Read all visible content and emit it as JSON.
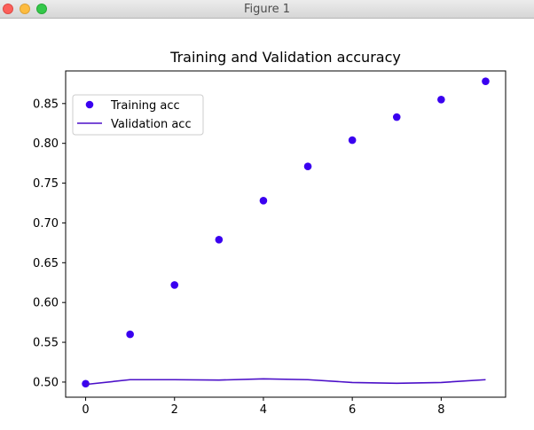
{
  "window": {
    "title": "Figure 1",
    "buttons": [
      "close",
      "minimize",
      "zoom"
    ]
  },
  "chart_data": {
    "type": "scatter",
    "title": "Training and Validation accuracy",
    "xlabel": "",
    "ylabel": "",
    "xlim": [
      -0.45,
      9.45
    ],
    "ylim": [
      0.481,
      0.891
    ],
    "xticks": [
      0,
      2,
      4,
      6,
      8
    ],
    "yticks": [
      0.5,
      0.55,
      0.6,
      0.65,
      0.7,
      0.75,
      0.8,
      0.85
    ],
    "grid": false,
    "legend_position": "upper-left",
    "series": [
      {
        "name": "Training acc",
        "kind": "points",
        "color": "#3a00f0",
        "x": [
          0,
          1,
          2,
          3,
          4,
          5,
          6,
          7,
          8,
          9
        ],
        "y": [
          0.498,
          0.56,
          0.622,
          0.679,
          0.728,
          0.771,
          0.804,
          0.833,
          0.855,
          0.878
        ]
      },
      {
        "name": "Validation acc",
        "kind": "line",
        "color": "#4b0fc8",
        "x": [
          0,
          1,
          2,
          3,
          4,
          5,
          6,
          7,
          8,
          9
        ],
        "y": [
          0.497,
          0.503,
          0.503,
          0.5025,
          0.504,
          0.503,
          0.4995,
          0.4985,
          0.4995,
          0.503
        ]
      }
    ]
  }
}
